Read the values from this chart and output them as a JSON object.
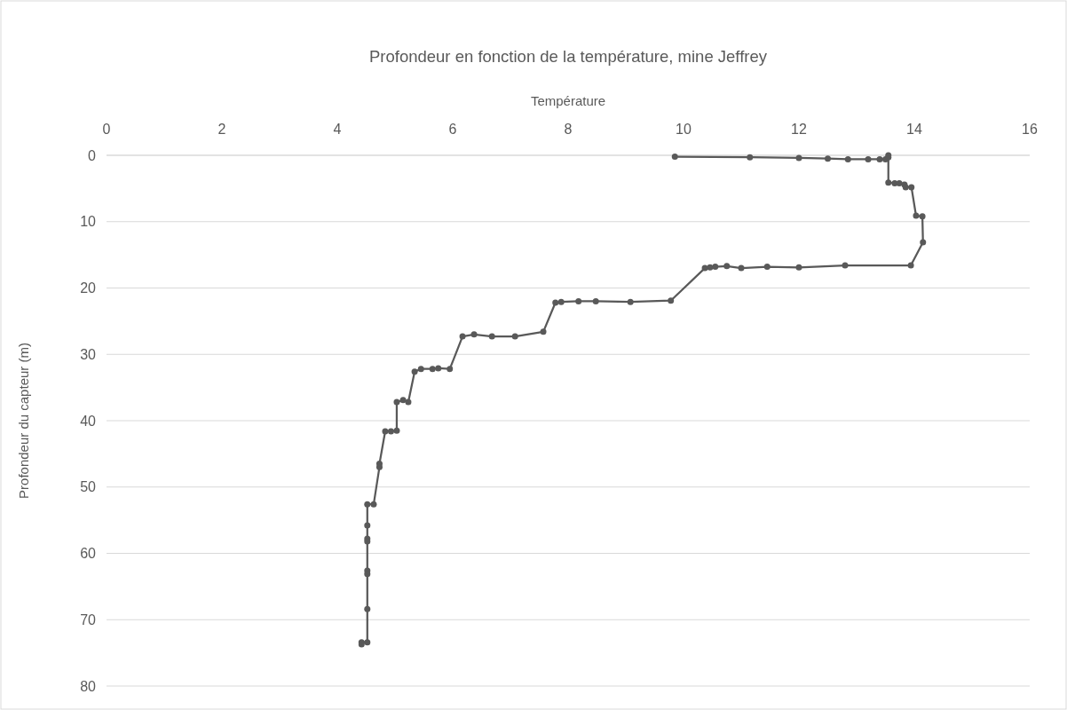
{
  "chart_data": {
    "type": "line",
    "title": "Profondeur en fonction de la température, mine Jeffrey",
    "xlabel": "Température",
    "ylabel": "Profondeur du capteur (m)",
    "xlim": [
      0,
      16
    ],
    "xticks": [
      0,
      2,
      4,
      6,
      8,
      10,
      12,
      14,
      16
    ],
    "ylim": [
      80,
      0
    ],
    "yticks": [
      0,
      10,
      20,
      30,
      40,
      50,
      60,
      70,
      80
    ],
    "grid": "y",
    "marker": "circle",
    "line_style": "solid",
    "series": [
      {
        "color": "#595959",
        "x": [
          9.85,
          11.15,
          12.0,
          12.5,
          12.85,
          13.2,
          13.4,
          13.5,
          13.55,
          13.55,
          13.55,
          13.66,
          13.74,
          13.83,
          13.85,
          13.95,
          14.03,
          14.14,
          14.15,
          13.94,
          12.8,
          12.0,
          11.45,
          11.0,
          10.75,
          10.55,
          10.46,
          10.37,
          9.78,
          9.08,
          8.48,
          8.18,
          7.88,
          7.78,
          7.57,
          7.08,
          6.68,
          6.37,
          6.17,
          5.95,
          5.75,
          5.65,
          5.45,
          5.34,
          5.23,
          5.14,
          5.03,
          5.03,
          4.93,
          4.83,
          4.73,
          4.73,
          4.63,
          4.52,
          4.52,
          4.52,
          4.52,
          4.52,
          4.52,
          4.52,
          4.52,
          4.42,
          4.42
        ],
        "values": [
          0.2,
          0.3,
          0.4,
          0.5,
          0.6,
          0.6,
          0.6,
          0.6,
          0.3,
          0,
          4.1,
          4.2,
          4.2,
          4.4,
          4.8,
          4.8,
          9.1,
          9.2,
          13.1,
          16.6,
          16.6,
          16.9,
          16.8,
          17.0,
          16.7,
          16.8,
          16.9,
          17.0,
          21.9,
          22.1,
          22.0,
          22.0,
          22.1,
          22.2,
          26.6,
          27.3,
          27.3,
          27.0,
          27.3,
          32.2,
          32.1,
          32.2,
          32.2,
          32.6,
          37.2,
          36.9,
          37.2,
          41.5,
          41.6,
          41.6,
          46.5,
          47.0,
          52.6,
          52.6,
          55.8,
          57.8,
          58.2,
          62.6,
          63.1,
          68.4,
          73.4,
          73.4,
          73.7
        ]
      }
    ]
  }
}
